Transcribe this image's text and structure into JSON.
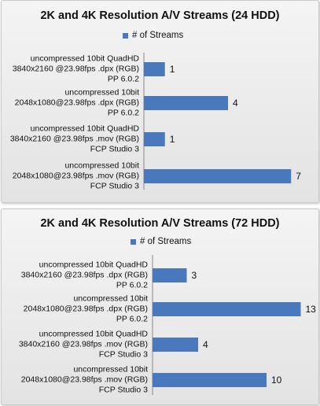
{
  "chart_data": [
    {
      "type": "bar",
      "orientation": "horizontal",
      "title": "2K and 4K Resolution A/V Streams (24 HDD)",
      "categories": [
        "uncompressed 10bit QuadHD\n3840x2160 @23.98fps .dpx (RGB)\nPP 6.0.2",
        "uncompressed 10bit\n2048x1080@23.98fps .dpx (RGB)\nPP 6.0.2",
        "uncompressed 10bit QuadHD\n3840x2160 @23.98fps .mov (RGB)\nFCP Studio 3",
        "uncompressed 10bit\n2048x1080@23.98fps .mov (RGB)\nFCP Studio 3"
      ],
      "series": [
        {
          "name": "# of Streams",
          "color": "#4a78bd",
          "values": [
            1,
            4,
            1,
            7
          ]
        }
      ],
      "xlim": [
        0,
        8
      ],
      "legend": "top"
    },
    {
      "type": "bar",
      "orientation": "horizontal",
      "title": "2K and 4K Resolution A/V Streams (72 HDD)",
      "categories": [
        "uncompressed 10bit QuadHD\n3840x2160 @23.98fps .dpx (RGB)\nPP 6.0.2",
        "uncompressed 10bit\n2048x1080@23.98fps .dpx (RGB)\nPP 6.0.2",
        "uncompressed 10bit QuadHD\n3840x2160 @23.98fps .mov (RGB)\nFCP Studio 3",
        "uncompressed 10bit\n2048x1080@23.98fps .mov (RGB)\nFCP Studio 3"
      ],
      "series": [
        {
          "name": "# of Streams",
          "color": "#4a78bd",
          "values": [
            3,
            13,
            4,
            10
          ]
        }
      ],
      "xlim": [
        0,
        14
      ],
      "legend": "top"
    }
  ]
}
